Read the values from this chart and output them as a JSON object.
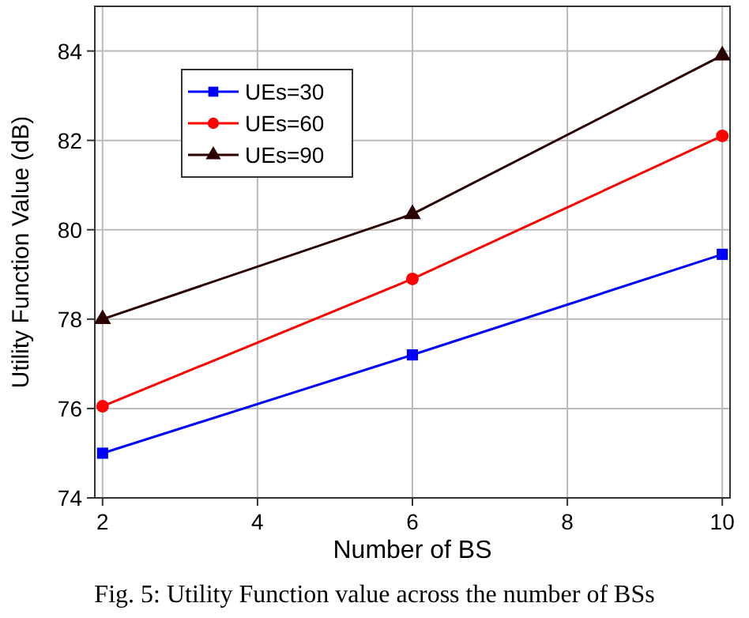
{
  "chart_data": {
    "type": "line",
    "xlabel": "Number of BS",
    "ylabel": "Utility Function Value (dB)",
    "x": [
      2,
      6,
      10
    ],
    "series": [
      {
        "name": "UEs=30",
        "color": "#0000ff",
        "marker": "square",
        "values": [
          75.0,
          77.2,
          79.45
        ]
      },
      {
        "name": "UEs=60",
        "color": "#ff0000",
        "marker": "circle",
        "values": [
          76.05,
          78.9,
          82.1
        ]
      },
      {
        "name": "UEs=90",
        "color": "#2a0000",
        "marker": "triangle",
        "values": [
          78.0,
          80.35,
          83.9
        ]
      }
    ],
    "xlim": [
      1.9,
      10.1
    ],
    "xticks": [
      2,
      4,
      6,
      8,
      10
    ],
    "ylim": [
      74,
      85
    ],
    "yticks": [
      74,
      76,
      78,
      80,
      82,
      84
    ],
    "grid": true,
    "legend": "top left",
    "line_style": "solid",
    "annotations": [
      "Fig. 5: Utility Function value across the number of BSs"
    ]
  }
}
